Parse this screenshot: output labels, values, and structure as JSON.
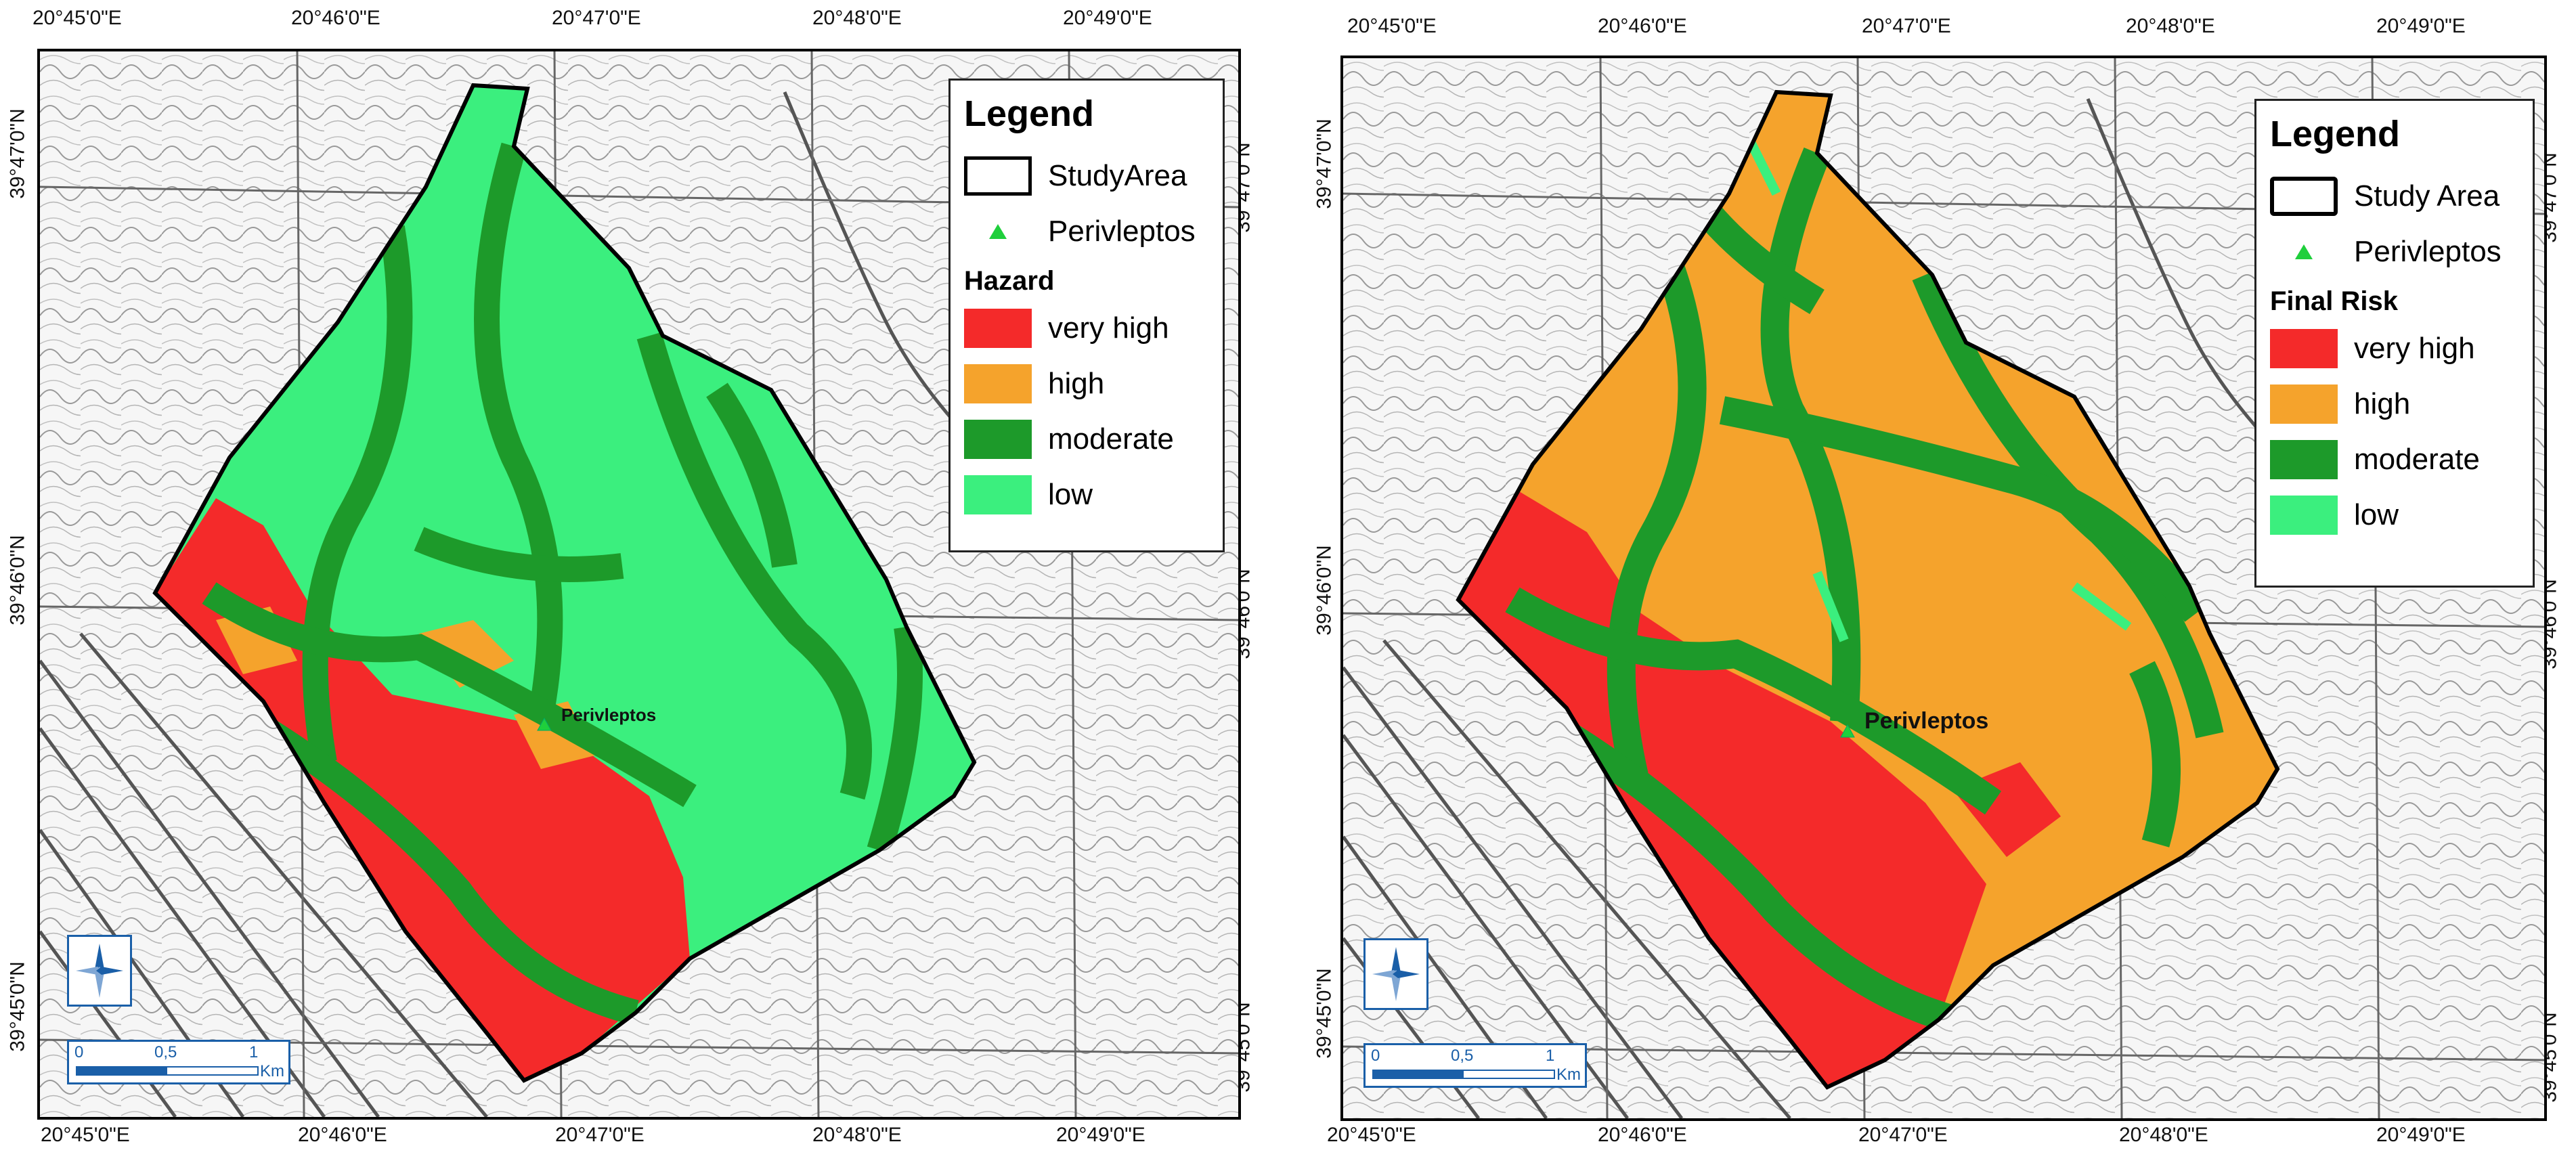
{
  "maps": [
    {
      "lon_ticks": [
        "20°45'0\"E",
        "20°46'0\"E",
        "20°47'0\"E",
        "20°48'0\"E",
        "20°49'0\"E"
      ],
      "lat_ticks": [
        "39°47'0\"N",
        "39°46'0\"N",
        "39°45'0\"N"
      ],
      "place_label": "Perivleptos",
      "legend": {
        "title": "Legend",
        "study_area_label": "StudyArea",
        "point_label": "Perivleptos",
        "class_title": "Hazard",
        "classes": [
          {
            "label": "very high",
            "color": "#f42a2a"
          },
          {
            "label": "high",
            "color": "#f5a32c"
          },
          {
            "label": "moderate",
            "color": "#1d9a2a"
          },
          {
            "label": "low",
            "color": "#3bef7e"
          }
        ]
      },
      "scale": {
        "ticks": [
          "0",
          "0,5",
          "1"
        ],
        "unit": "Km"
      }
    },
    {
      "lon_ticks": [
        "20°45'0\"E",
        "20°46'0\"E",
        "20°47'0\"E",
        "20°48'0\"E",
        "20°49'0\"E"
      ],
      "lat_ticks": [
        "39°47'0\"N",
        "39°46'0\"N",
        "39°45'0\"N"
      ],
      "place_label": "Perivleptos",
      "legend": {
        "title": "Legend",
        "study_area_label": "Study Area",
        "point_label": "Perivleptos",
        "class_title": "Final Risk",
        "classes": [
          {
            "label": "very high",
            "color": "#f42a2a"
          },
          {
            "label": "high",
            "color": "#f5a32c"
          },
          {
            "label": "moderate",
            "color": "#1d9a2a"
          },
          {
            "label": "low",
            "color": "#3bef7e"
          }
        ]
      },
      "scale": {
        "ticks": [
          "0",
          "0,5",
          "1"
        ],
        "unit": "Km"
      }
    }
  ],
  "base_map_color": "#9a9a9a"
}
